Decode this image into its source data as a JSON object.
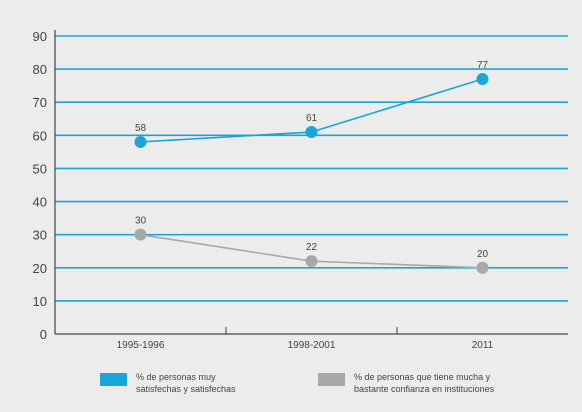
{
  "chart_data": {
    "type": "line",
    "categories": [
      "1995-1996",
      "1998-2001",
      "2011"
    ],
    "ylim": [
      0,
      90
    ],
    "yticks": [
      "0",
      "10",
      "20",
      "30",
      "40",
      "50",
      "60",
      "70",
      "80",
      "90"
    ],
    "grid": true,
    "series": [
      {
        "name": "% de personas muy\nsatisfechas y satisfechas",
        "values": [
          58,
          61,
          77
        ],
        "color": "#1aa6da"
      },
      {
        "name": "% de personas que tiene mucha y\nbastante confianza en instituciones",
        "values": [
          30,
          22,
          20
        ],
        "color": "#a8a8a8"
      }
    ],
    "legend_position": "bottom"
  }
}
